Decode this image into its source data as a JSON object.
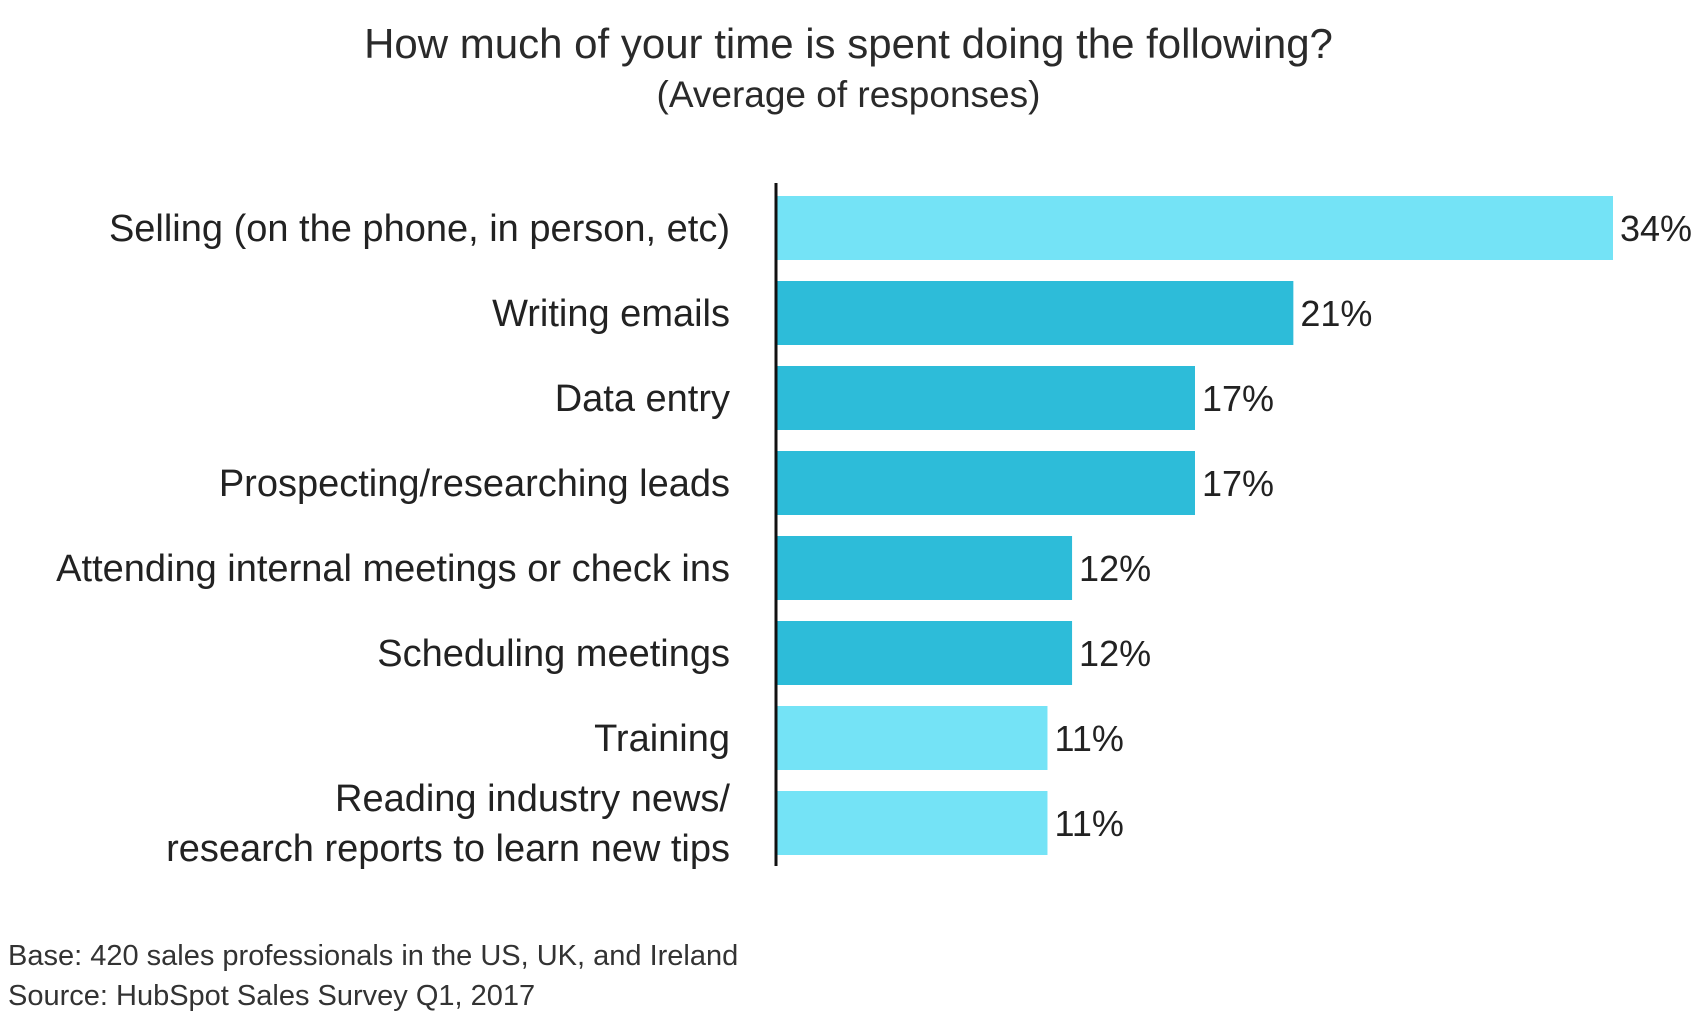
{
  "chart_data": {
    "type": "bar",
    "orientation": "horizontal",
    "title": "How much of your time is spent doing the following?",
    "subtitle": "(Average of responses)",
    "categories": [
      [
        "Selling (on the phone, in person, etc)"
      ],
      [
        "Writing emails"
      ],
      [
        "Data entry"
      ],
      [
        "Prospecting/researching leads"
      ],
      [
        "Attending internal meetings or check ins"
      ],
      [
        "Scheduling meetings"
      ],
      [
        "Training"
      ],
      [
        "Reading industry news/",
        "research reports to learn new tips"
      ]
    ],
    "values": [
      34,
      21,
      17,
      17,
      12,
      12,
      11,
      11
    ],
    "value_labels": [
      "34%",
      "21%",
      "17%",
      "17%",
      "12%",
      "12%",
      "11%",
      "11%"
    ],
    "bar_colors": [
      "#74E3F6",
      "#2DBCD9",
      "#2DBCD9",
      "#2DBCD9",
      "#2DBCD9",
      "#2DBCD9",
      "#74E3F6",
      "#74E3F6"
    ],
    "xlim": [
      0,
      34
    ],
    "grid": false,
    "legend": "none"
  },
  "footnotes": {
    "base": "Base: 420 sales professionals in the US, UK, and Ireland",
    "source": "Source: HubSpot Sales Survey Q1, 2017"
  },
  "colors": {
    "axis": "#111111",
    "text": "#222222"
  }
}
